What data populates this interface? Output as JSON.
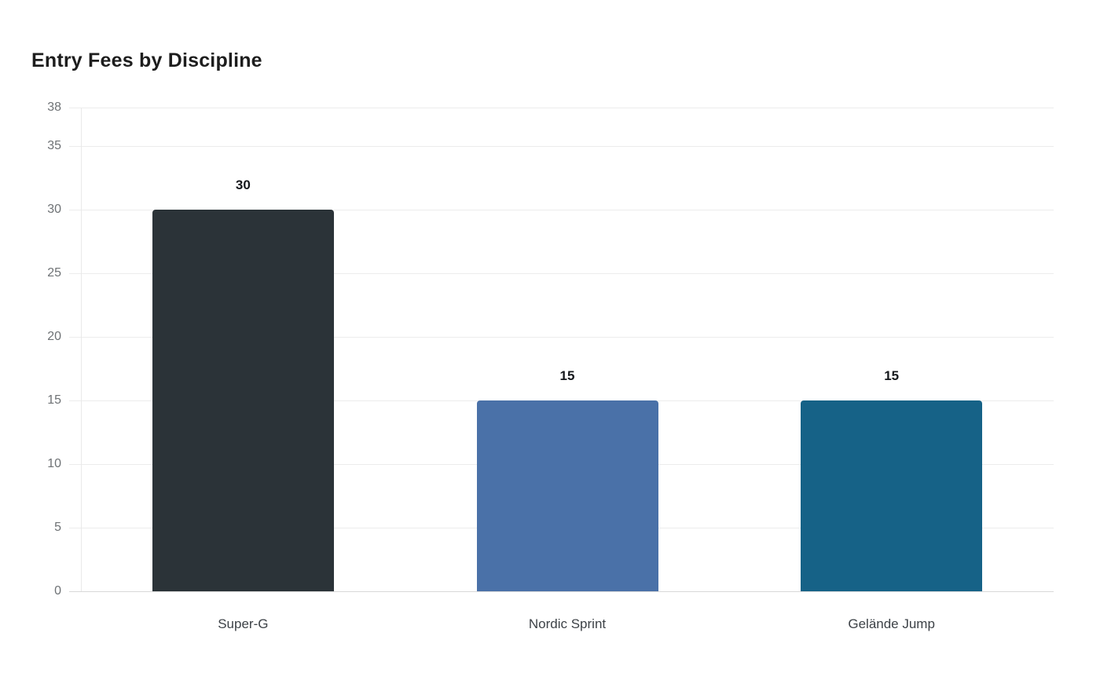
{
  "chart_data": {
    "type": "bar",
    "title": "Entry Fees by Discipline",
    "categories": [
      "Super-G",
      "Nordic Sprint",
      "Gelände Jump"
    ],
    "values": [
      30,
      15,
      15
    ],
    "value_labels": [
      "30",
      "15",
      "15"
    ],
    "bar_colors": [
      "#2b3338",
      "#4a71a8",
      "#166287"
    ],
    "yticks": [
      0,
      5,
      10,
      15,
      20,
      25,
      30,
      35,
      38
    ],
    "ylim": [
      0,
      38
    ],
    "xlabel": "",
    "ylabel": "",
    "grid": true,
    "legend_position": "none",
    "colors": {
      "background": "#ffffff",
      "title": "#1d1d1d",
      "tick_label": "#6e7275",
      "category_label": "#3d4247",
      "value_label": "#15181c",
      "gridline": "#ececec",
      "baseline": "#d8d8d8",
      "axis_line": "#e9e9e9"
    }
  }
}
